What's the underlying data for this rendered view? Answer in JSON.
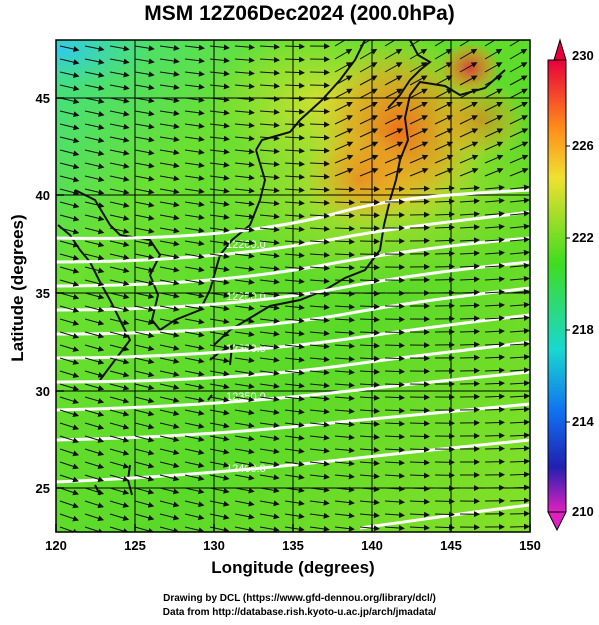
{
  "title": "MSM 12Z06Dec2024 (200.0hPa)",
  "xlabel": "Longitude (degrees)",
  "ylabel": "Latitude  (degrees)",
  "x_ticks": [
    "120",
    "125",
    "130",
    "135",
    "140",
    "145",
    "150"
  ],
  "y_ticks": [
    "25",
    "30",
    "35",
    "40",
    "45"
  ],
  "colorbar": {
    "ticks": [
      "230",
      "226",
      "222",
      "218",
      "214",
      "210"
    ],
    "colors": [
      "#e8003c",
      "#ff8c1a",
      "#f0e030",
      "#40dc20",
      "#18d8d0",
      "#1070f0",
      "#2020b0",
      "#e020c0"
    ]
  },
  "contour_labels": [
    "12200.0",
    "12250.0",
    "12300.0",
    "12350.0",
    "12400.0"
  ],
  "credits": {
    "line1": "Drawing by DCL (https://www.gfd-dennou.org/library/dcl/)",
    "line2": "Data from http://database.rish.kyoto-u.ac.jp/arch/jmadata/"
  },
  "chart_data": {
    "type": "heatmap",
    "title": "MSM 12Z06Dec2024 (200.0hPa)",
    "xlabel": "Longitude (degrees)",
    "ylabel": "Latitude  (degrees)",
    "xlim": [
      120,
      150
    ],
    "ylim": [
      22.4,
      47.6
    ],
    "x_ticks": [
      120,
      125,
      130,
      135,
      140,
      145,
      150
    ],
    "y_ticks": [
      25,
      30,
      35,
      40,
      45
    ],
    "colorbar_range": [
      210,
      230
    ],
    "colorbar_ticks": [
      230,
      226,
      222,
      218,
      214,
      210
    ],
    "grid": true,
    "overlay": "wind vectors and geopotential height contours"
  }
}
